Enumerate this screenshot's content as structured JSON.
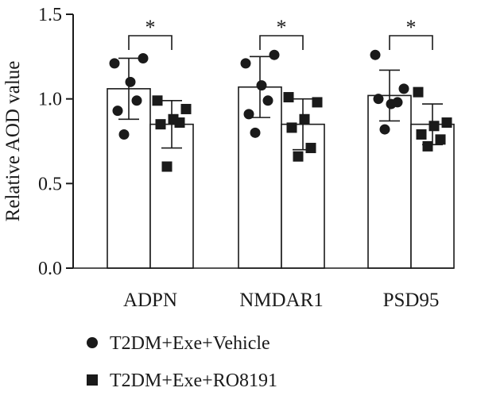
{
  "chart_data": {
    "type": "bar",
    "ylabel": "Relative AOD value",
    "ylim": [
      0,
      1.5
    ],
    "yticks": [
      {
        "value": 0.0,
        "label": "0.0"
      },
      {
        "value": 0.5,
        "label": "0.5"
      },
      {
        "value": 1.0,
        "label": "1.0"
      },
      {
        "value": 1.5,
        "label": "1.5"
      }
    ],
    "categories": [
      "ADPN",
      "NMDAR1",
      "PSD95"
    ],
    "significance": [
      "*",
      "*",
      "*"
    ],
    "legend_position": "bottom",
    "series": [
      {
        "name": "T2DM+Exe+Vehicle",
        "marker": "circle",
        "bar_fill": "#ffffff",
        "values": [
          1.06,
          1.07,
          1.02
        ],
        "sd": [
          0.18,
          0.18,
          0.15
        ],
        "points": [
          [
            1.21,
            1.24,
            1.1,
            0.93,
            0.99,
            0.79
          ],
          [
            1.21,
            1.26,
            1.08,
            0.91,
            0.99,
            0.8
          ],
          [
            1.26,
            1.06,
            0.97,
            1.0,
            0.98,
            0.82
          ]
        ]
      },
      {
        "name": "T2DM+Exe+RO8191",
        "marker": "square",
        "bar_fill": "#ffffff",
        "values": [
          0.85,
          0.85,
          0.85
        ],
        "sd": [
          0.14,
          0.15,
          0.12
        ],
        "points": [
          [
            0.99,
            0.94,
            0.88,
            0.85,
            0.86,
            0.6
          ],
          [
            1.01,
            0.98,
            0.88,
            0.83,
            0.71,
            0.66
          ],
          [
            1.04,
            0.86,
            0.84,
            0.79,
            0.76,
            0.72
          ]
        ]
      }
    ]
  }
}
